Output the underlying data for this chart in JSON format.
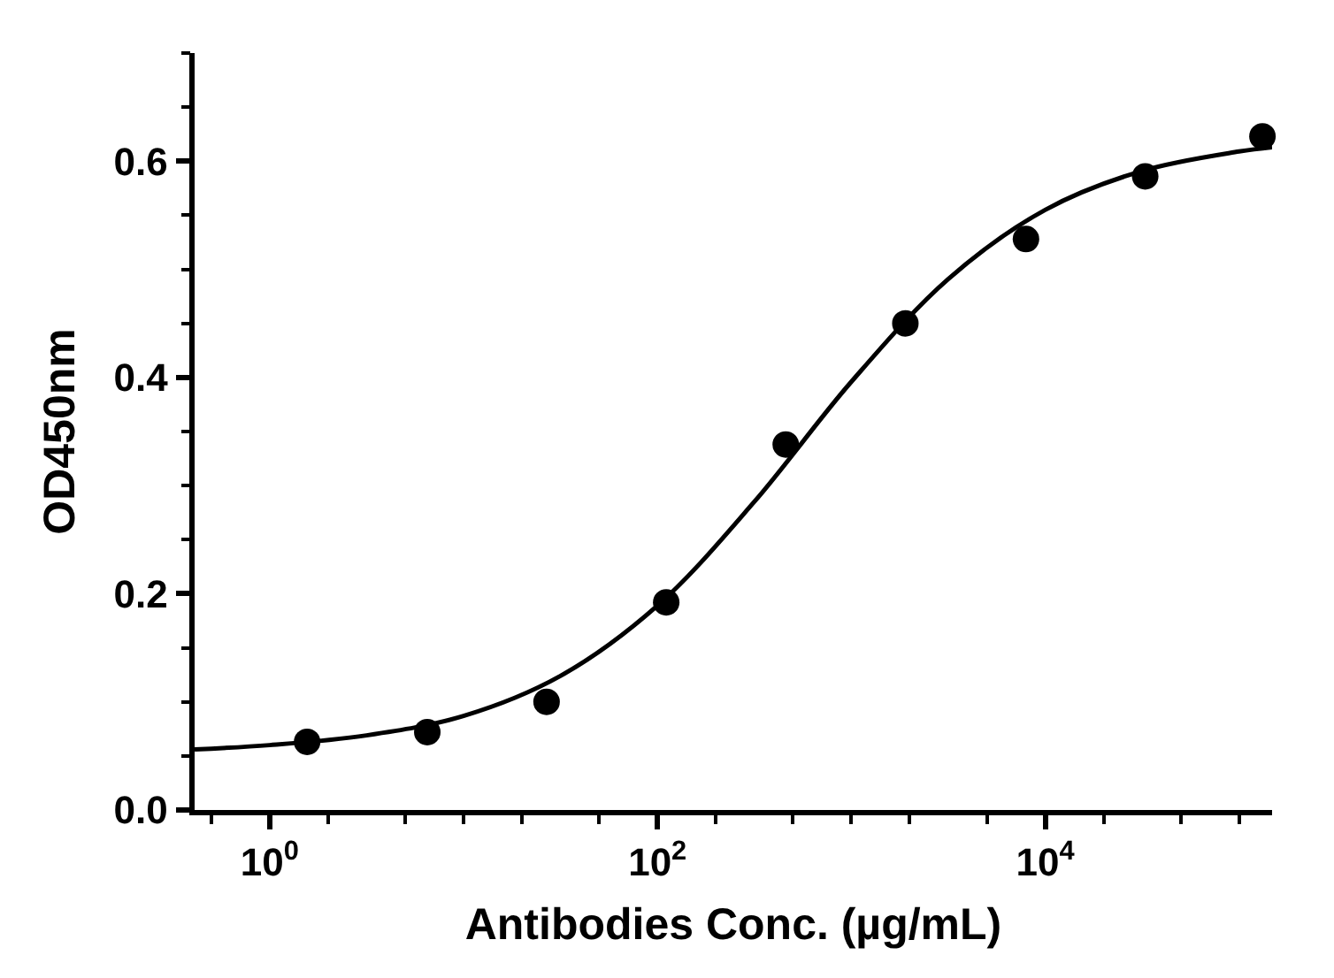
{
  "chart_data": {
    "type": "scatter",
    "xlabel": "Antibodies Conc. (µg/mL)",
    "ylabel": "OD450nm",
    "log": "x",
    "xlim": [
      0.41,
      148000
    ],
    "ylim": [
      0,
      0.7
    ],
    "xticks": [
      {
        "value": 1,
        "label": "10$^{0}$"
      },
      {
        "value": 100,
        "label": "10$^{2}$"
      },
      {
        "value": 10000,
        "label": "10$^{4}$"
      }
    ],
    "yticks": [
      {
        "value": 0,
        "label": "0.0"
      },
      0.2,
      0.4,
      0.6
    ],
    "series": [
      {
        "color": "#000000",
        "marker": "circle",
        "x": [
          1.56,
          6.5,
          26.8,
          111,
          459,
          1900,
          7960,
          32800,
          132000
        ],
        "values": [
          0.063,
          0.072,
          0.1,
          0.192,
          0.338,
          0.45,
          0.528,
          0.586,
          0.623
        ]
      },
      {
        "type": "line",
        "color": "#000000",
        "line_style": "solid",
        "x": [
          0.41,
          1,
          3.16,
          10,
          31.6,
          100,
          316,
          1000,
          3160,
          10000,
          31600,
          100000,
          148000
        ],
        "values": [
          0.056,
          0.06,
          0.069,
          0.087,
          0.124,
          0.189,
          0.285,
          0.396,
          0.491,
          0.555,
          0.591,
          0.609,
          0.613
        ]
      }
    ]
  }
}
